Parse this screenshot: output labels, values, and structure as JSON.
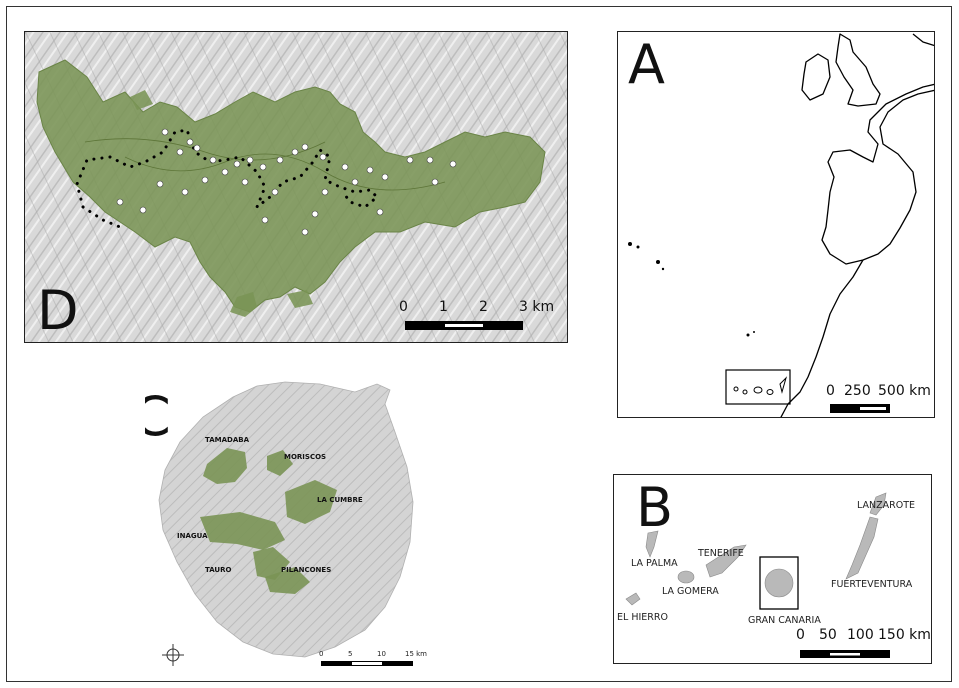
{
  "panels": {
    "d": {
      "letter": "D",
      "scale": {
        "ticks": [
          "0",
          "1",
          "2",
          "3 km"
        ]
      }
    },
    "a": {
      "letter": "A",
      "scale": {
        "ticks": [
          "0",
          "250",
          "500 km"
        ]
      }
    },
    "b": {
      "letter": "B",
      "islands": [
        "LANZAROTE",
        "TENERIFE",
        "LA PALMA",
        "FUERTEVENTURA",
        "LA GOMERA",
        "EL HIERRO",
        "GRAN CANARIA"
      ],
      "scale": {
        "ticks": [
          "0",
          "50",
          "100",
          "150 km"
        ]
      }
    },
    "c": {
      "letter": "C",
      "forests": [
        "TAMADABA",
        "MORISCOS",
        "LA CUMBRE",
        "INAGUA",
        "TAURO",
        "PILANCONES"
      ],
      "scale": {
        "ticks": [
          "0",
          "5",
          "10",
          "15 km"
        ]
      }
    }
  },
  "colors": {
    "forest": "#7a9455",
    "relief": "#d6d6d6",
    "frame": "#222222"
  }
}
